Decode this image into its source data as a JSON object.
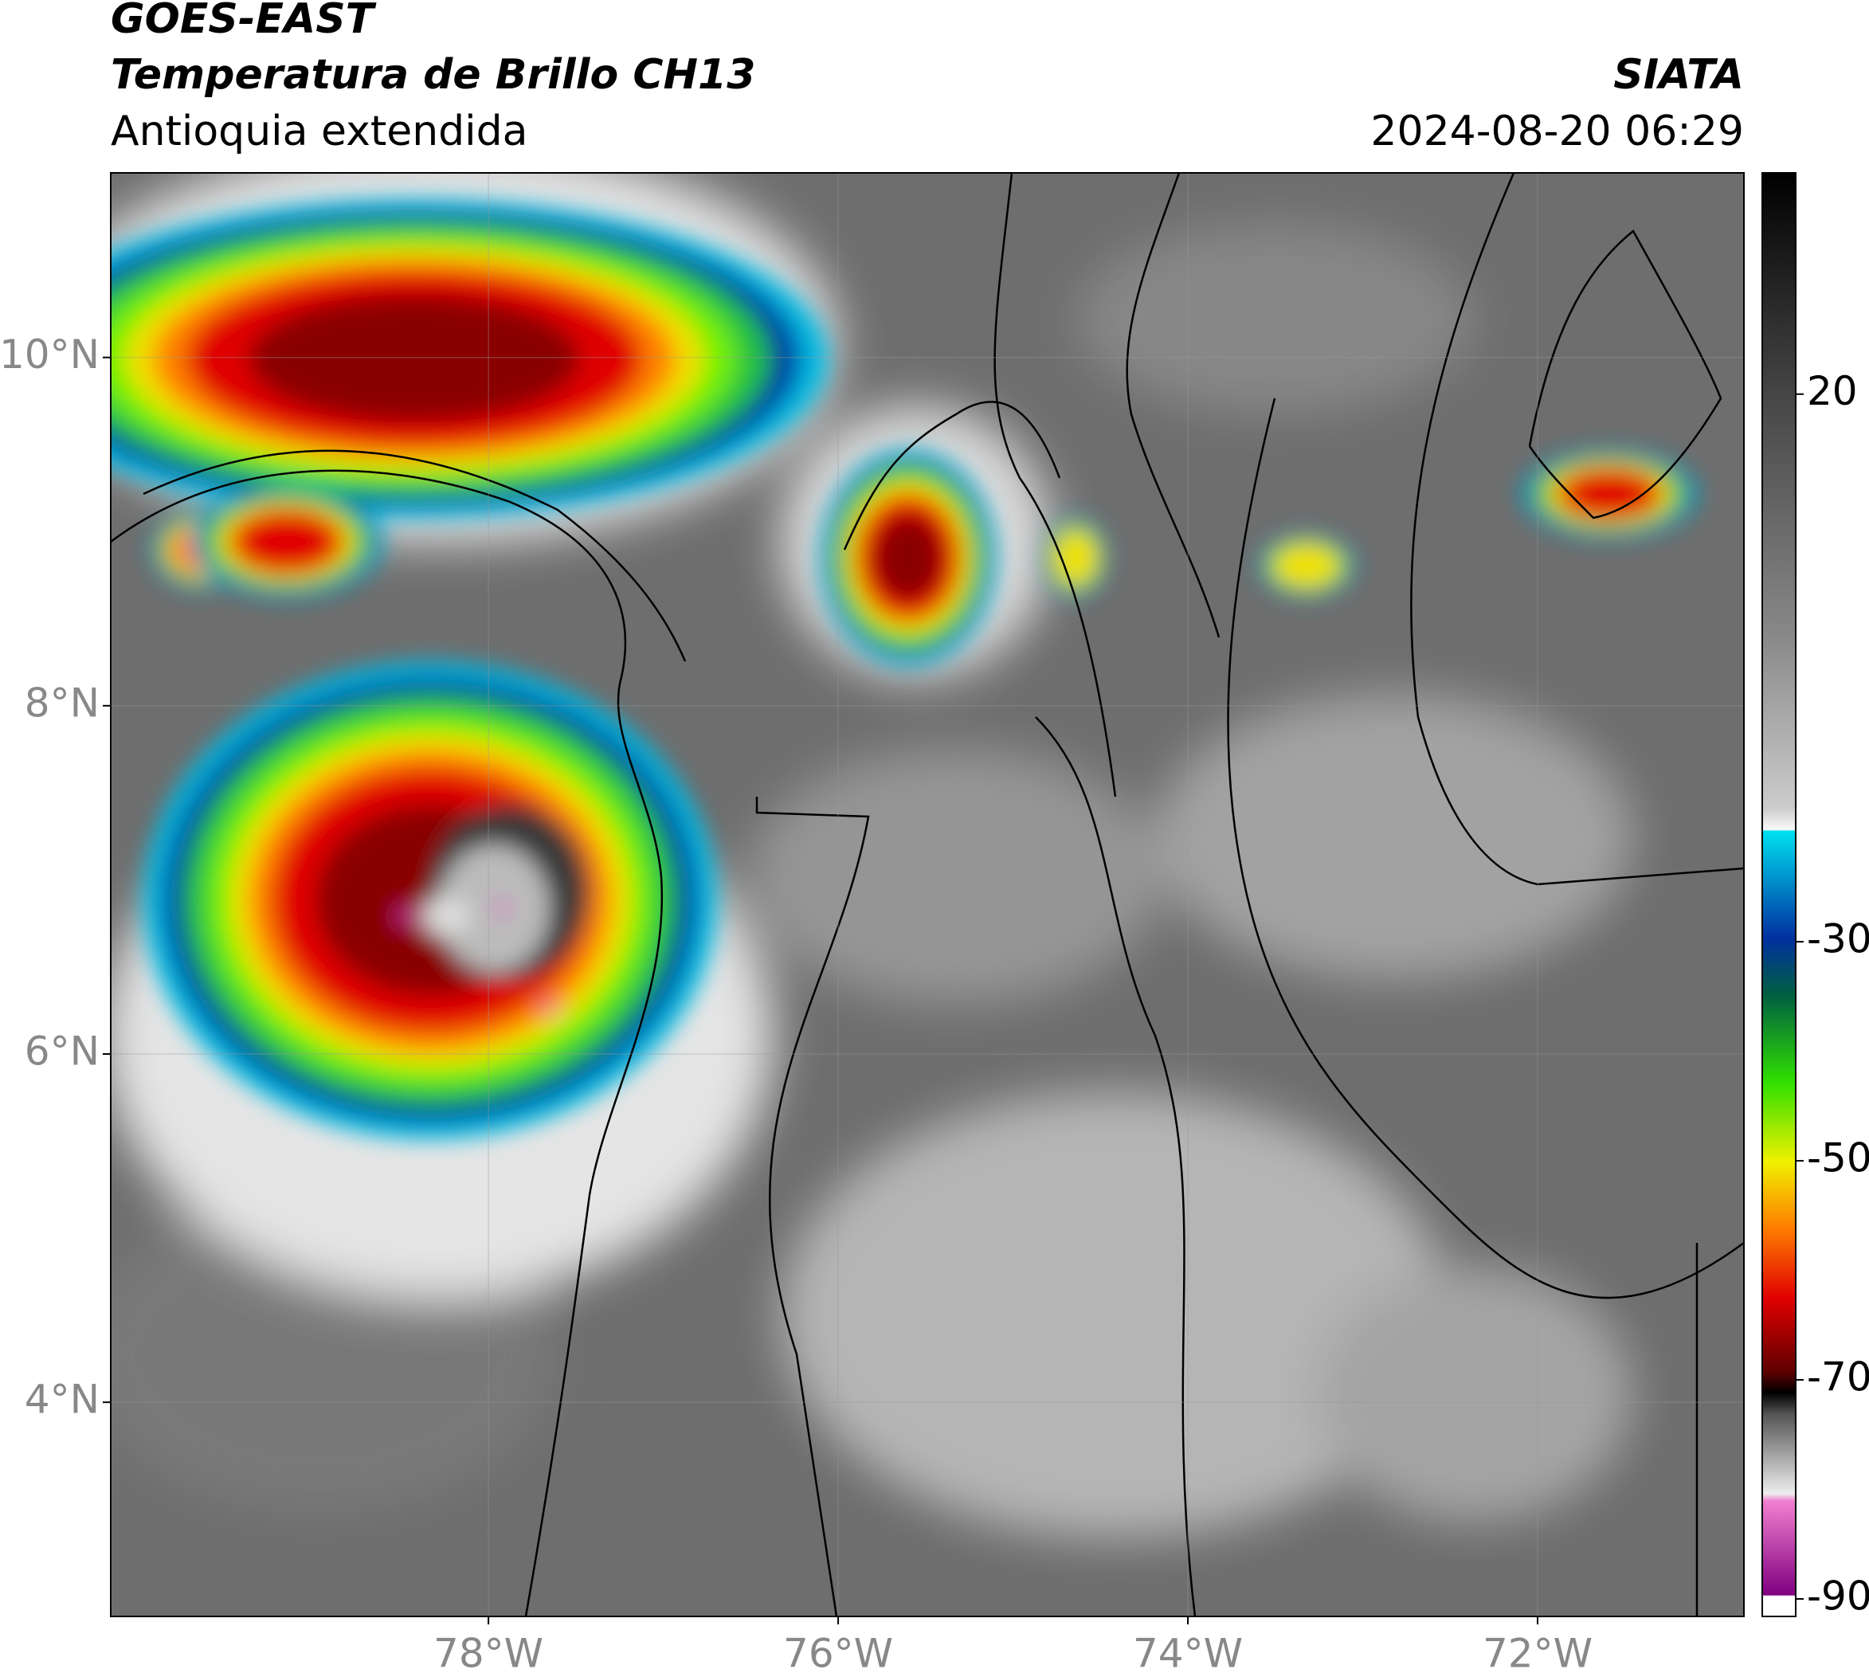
{
  "header": {
    "title": "GOES-EAST",
    "subtitle": "Temperatura de Brillo CH13",
    "region": "Antioquia extendida",
    "source": "SIATA",
    "datetime": "2024-08-20 06:29"
  },
  "chart_data": {
    "type": "map",
    "xlim": [
      -80.16,
      -70.82
    ],
    "ylim": [
      2.77,
      11.06
    ],
    "xticks": [
      {
        "value": -78,
        "label": "78°W"
      },
      {
        "value": -76,
        "label": "76°W"
      },
      {
        "value": -74,
        "label": "74°W"
      },
      {
        "value": -72,
        "label": "72°W"
      }
    ],
    "yticks": [
      {
        "value": 4,
        "label": "4°N"
      },
      {
        "value": 6,
        "label": "6°N"
      },
      {
        "value": 8,
        "label": "8°N"
      },
      {
        "value": 10,
        "label": "10°N"
      }
    ],
    "grid": true,
    "colorbar": {
      "lim": [
        -91.6,
        40.2
      ],
      "ticks": [
        20,
        -30,
        -50,
        -70,
        -90
      ]
    }
  }
}
